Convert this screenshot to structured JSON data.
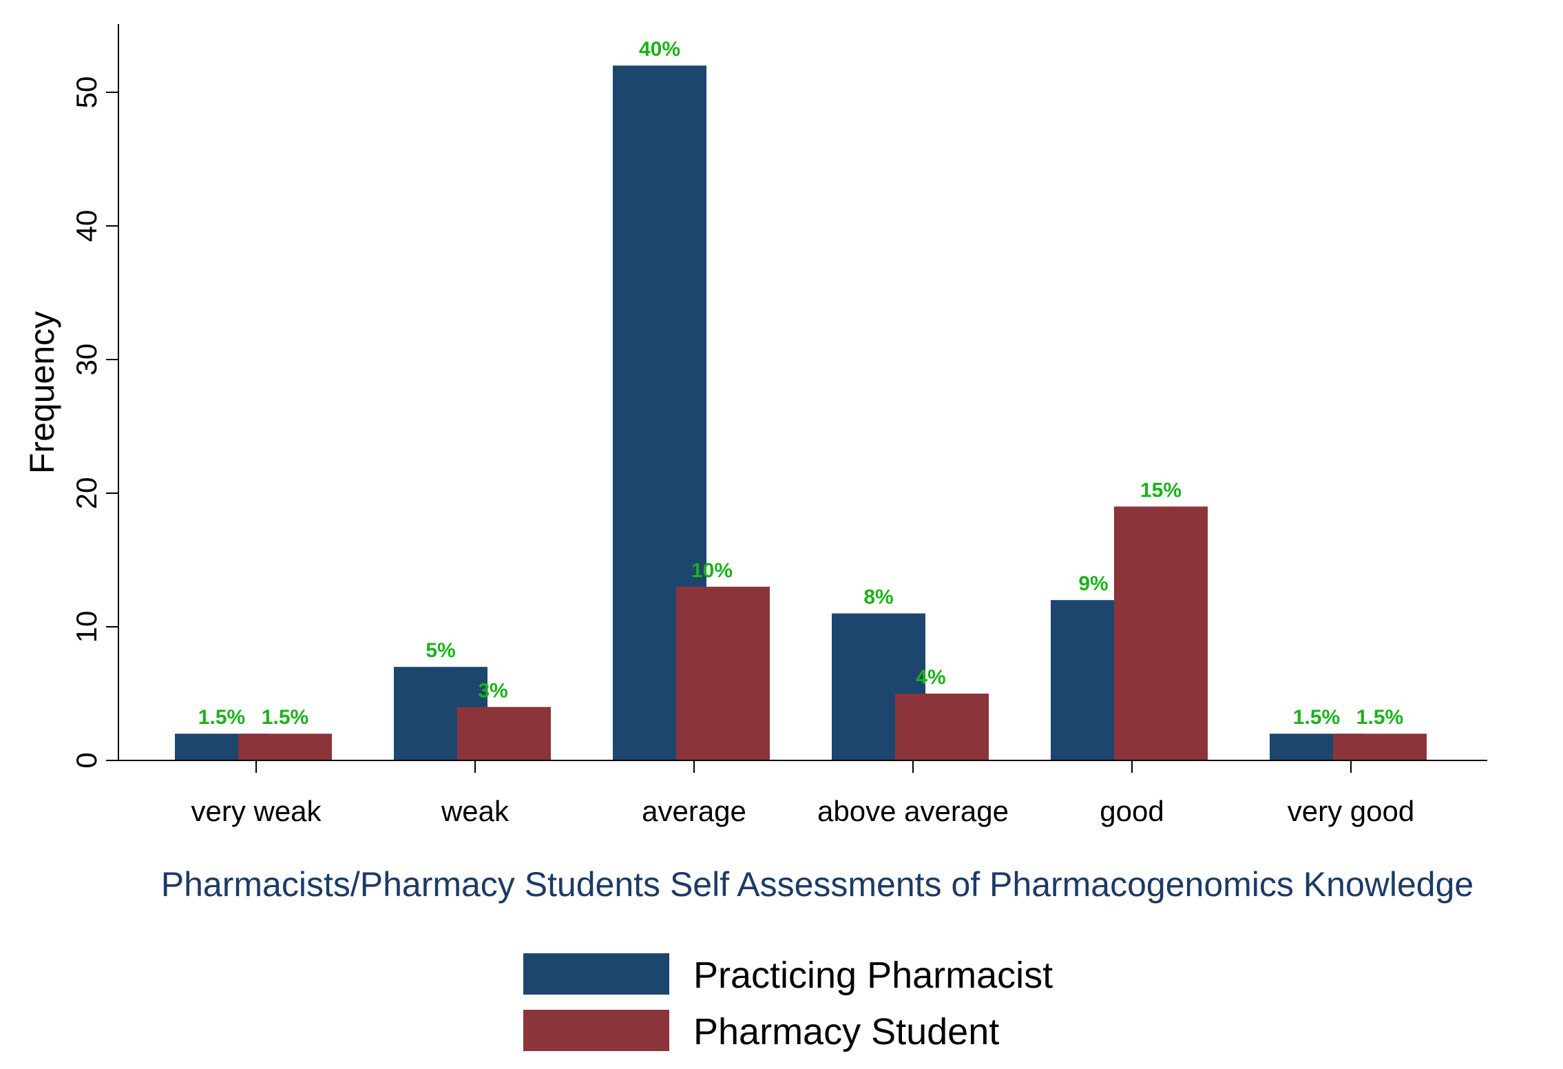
{
  "chart_data": {
    "type": "bar",
    "title": "",
    "xlabel": "Pharmacists/Pharmacy Students Self Assessments of Pharmacogenomics Knowledge",
    "ylabel": "Frequency",
    "ylim": [
      0,
      55
    ],
    "yticks": [
      0,
      10,
      20,
      30,
      40,
      50
    ],
    "grid": false,
    "legend_position": "bottom-center",
    "categories": [
      "very weak",
      "weak",
      "average",
      "above average",
      "good",
      "very good"
    ],
    "series": [
      {
        "name": "Practicing Pharmacist",
        "color": "#1c466e",
        "values": [
          2,
          7,
          52,
          11,
          12,
          2
        ],
        "labels": [
          "1.5%",
          "5%",
          "40%",
          "8%",
          "9%",
          "1.5%"
        ]
      },
      {
        "name": "Pharmacy Student",
        "color": "#8b343a",
        "values": [
          2,
          4,
          13,
          5,
          19,
          2
        ],
        "labels": [
          "1.5%",
          "3%",
          "10%",
          "4%",
          "15%",
          "1.5%"
        ]
      }
    ],
    "data_label_color": "#1ab21a"
  }
}
